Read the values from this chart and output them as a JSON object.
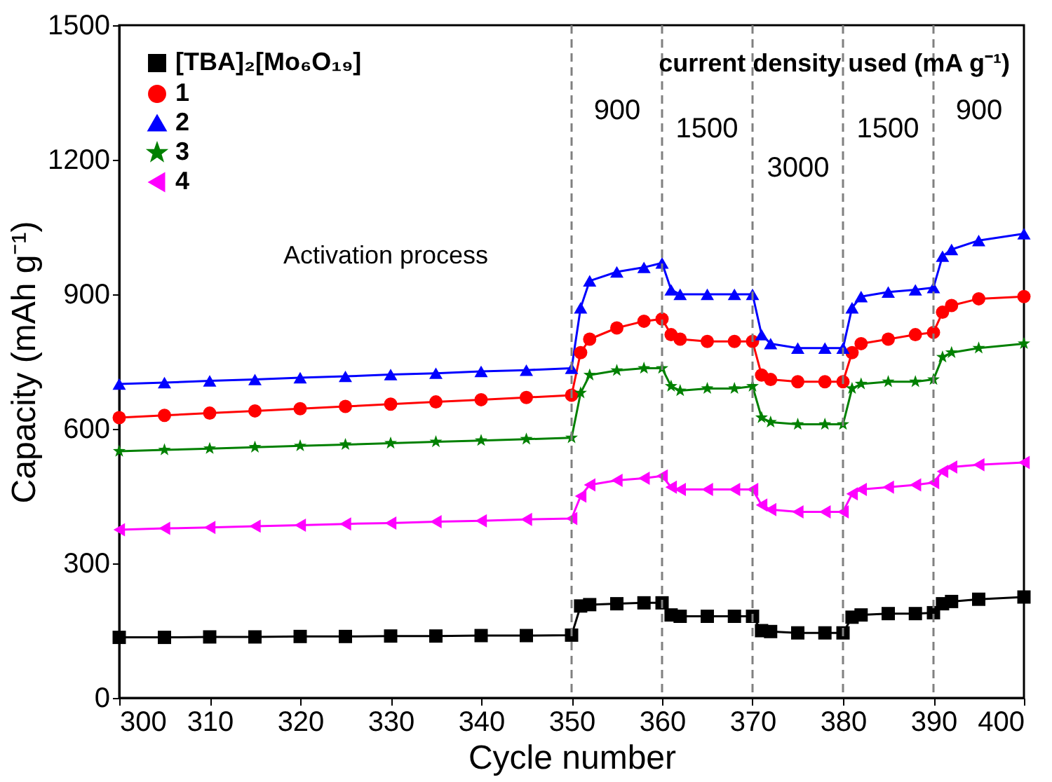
{
  "chart_data": {
    "type": "line",
    "xlabel": "Cycle number",
    "ylabel": "Capacity (mAh g⁻¹)",
    "x": [
      300,
      305,
      310,
      315,
      320,
      325,
      330,
      335,
      340,
      345,
      350,
      351,
      352,
      355,
      358,
      360,
      361,
      362,
      365,
      368,
      370,
      371,
      372,
      375,
      378,
      380,
      381,
      382,
      385,
      388,
      390,
      391,
      392,
      395,
      400
    ],
    "series": [
      {
        "name": "[TBA]₂[Mo₆O₁₉]",
        "color": "#000000",
        "marker": "square",
        "values": [
          135,
          135,
          136,
          136,
          137,
          137,
          138,
          138,
          139,
          139,
          140,
          205,
          208,
          210,
          212,
          212,
          185,
          182,
          182,
          182,
          182,
          150,
          148,
          145,
          145,
          145,
          180,
          185,
          188,
          188,
          190,
          210,
          215,
          220,
          225
        ]
      },
      {
        "name": "1",
        "color": "#ff0000",
        "marker": "circle",
        "values": [
          625,
          630,
          635,
          640,
          645,
          650,
          655,
          660,
          665,
          670,
          675,
          770,
          800,
          825,
          840,
          845,
          810,
          800,
          795,
          795,
          795,
          720,
          710,
          705,
          705,
          705,
          770,
          790,
          800,
          810,
          815,
          860,
          875,
          890,
          895
        ]
      },
      {
        "name": "2",
        "color": "#0000ff",
        "marker": "triangle",
        "values": [
          700,
          703,
          707,
          710,
          714,
          717,
          721,
          724,
          728,
          731,
          735,
          870,
          930,
          950,
          960,
          970,
          910,
          900,
          900,
          900,
          900,
          810,
          790,
          780,
          780,
          780,
          870,
          895,
          905,
          910,
          915,
          985,
          1000,
          1020,
          1035
        ]
      },
      {
        "name": "3",
        "color": "#008000",
        "marker": "star",
        "values": [
          550,
          553,
          556,
          559,
          562,
          565,
          568,
          571,
          574,
          577,
          580,
          680,
          720,
          730,
          735,
          735,
          695,
          685,
          690,
          690,
          695,
          625,
          615,
          610,
          610,
          610,
          690,
          700,
          705,
          705,
          710,
          760,
          770,
          780,
          790
        ]
      },
      {
        "name": "4",
        "color": "#ff00ff",
        "marker": "triangle-left",
        "values": [
          375,
          378,
          380,
          383,
          385,
          388,
          390,
          393,
          395,
          398,
          400,
          450,
          475,
          485,
          490,
          495,
          470,
          465,
          465,
          465,
          465,
          430,
          420,
          415,
          415,
          415,
          455,
          465,
          470,
          475,
          480,
          505,
          515,
          520,
          525
        ]
      }
    ],
    "xlim": [
      300,
      400
    ],
    "xticks": [
      300,
      310,
      320,
      330,
      340,
      350,
      360,
      370,
      380,
      390,
      400
    ],
    "ylim": [
      0,
      1500
    ],
    "yticks": [
      0,
      300,
      600,
      900,
      {
        "value": 1200,
        "label": "1200"
      },
      {
        "value": 1500,
        "label": "1500"
      }
    ],
    "grid": false,
    "legend": "top left",
    "line_style": "solid",
    "ref_lines": [
      {
        "axis": "x",
        "value": 350,
        "color": "#808080",
        "line_style": "dashed"
      },
      {
        "axis": "x",
        "value": 360,
        "color": "#808080",
        "line_style": "dashed"
      },
      {
        "axis": "x",
        "value": 370,
        "color": "#808080",
        "line_style": "dashed"
      },
      {
        "axis": "x",
        "value": 380,
        "color": "#808080",
        "line_style": "dashed"
      },
      {
        "axis": "x",
        "value": 390,
        "color": "#808080",
        "line_style": "dashed"
      }
    ],
    "annotations": [
      "current density used (mA g⁻¹)",
      "Activation process",
      "900",
      "1500",
      "3000",
      "1500",
      "900"
    ]
  }
}
